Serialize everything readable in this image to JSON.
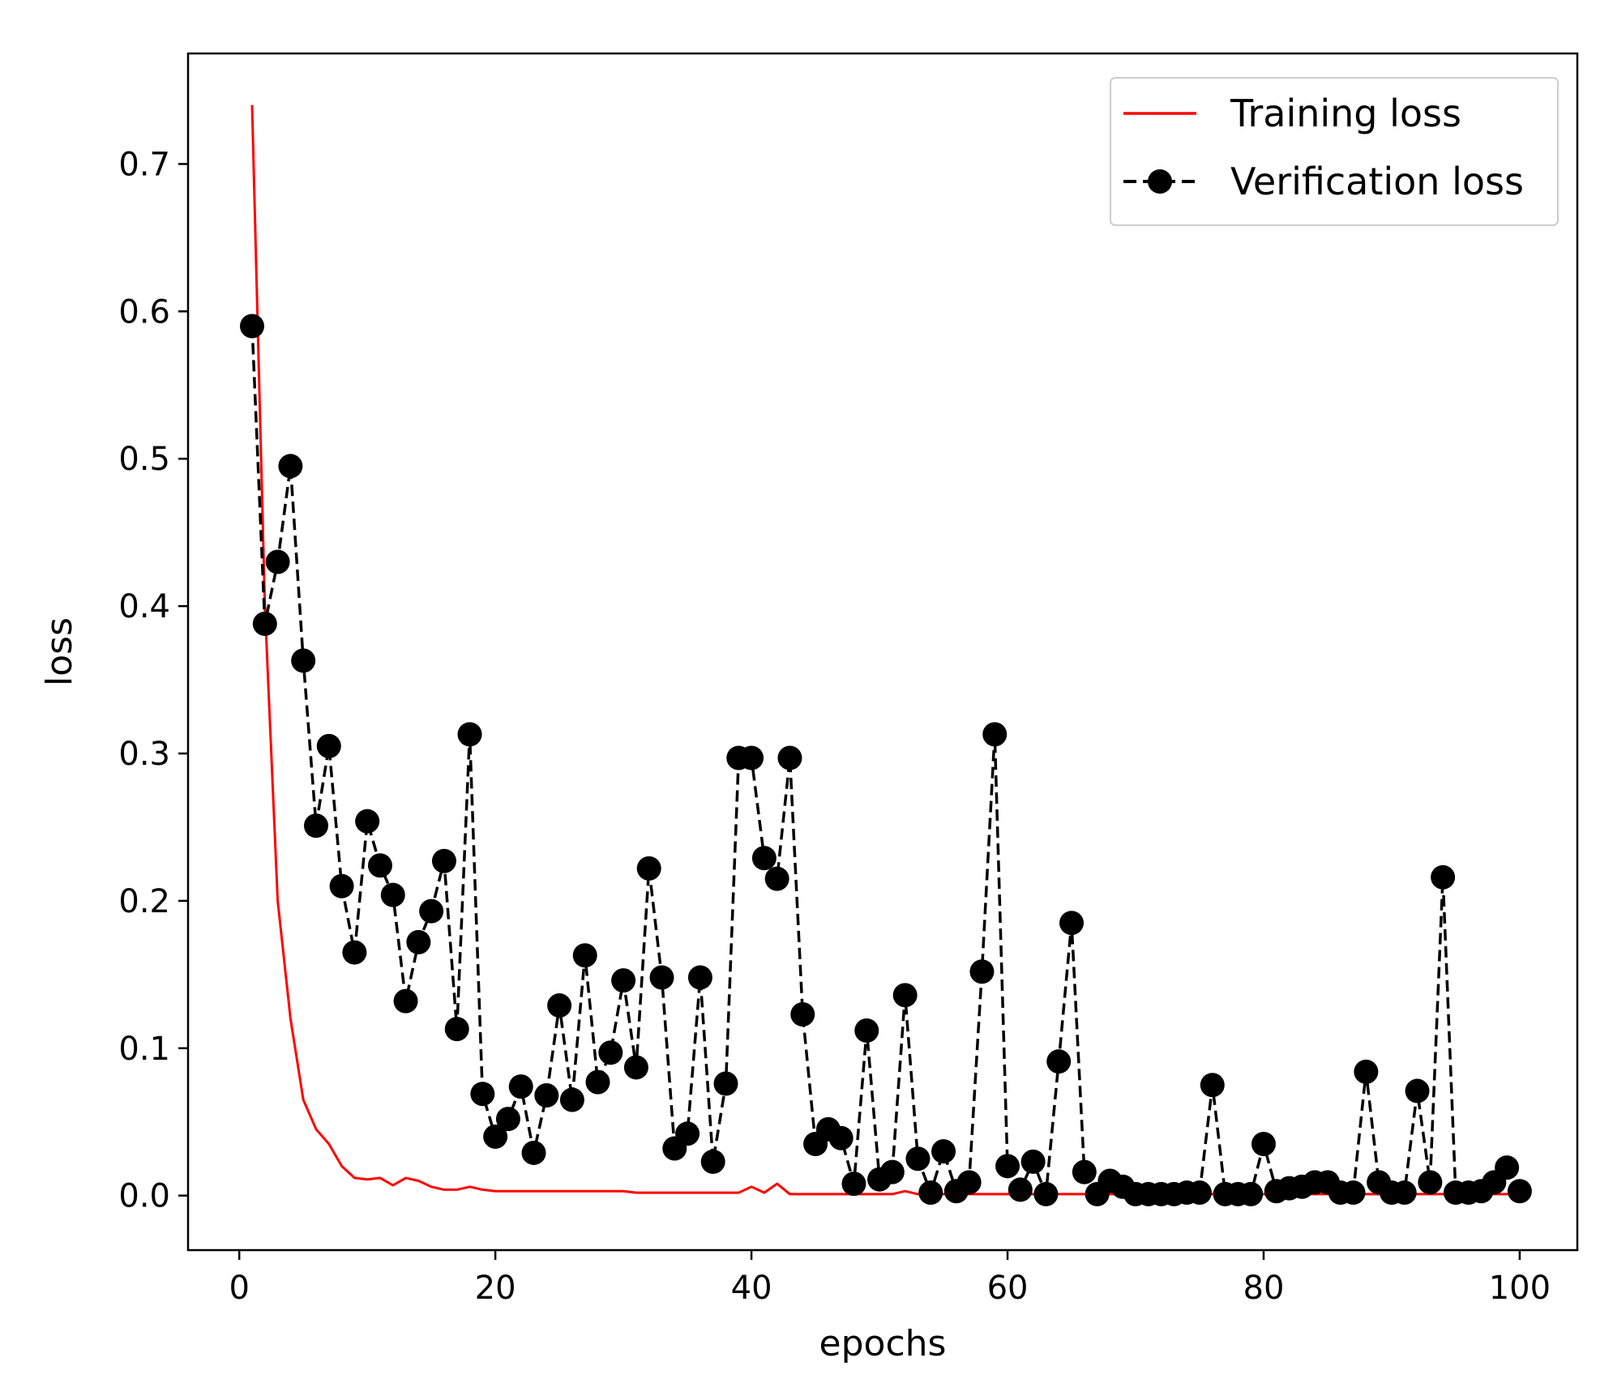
{
  "chart_data": {
    "type": "line",
    "xlabel": "epochs",
    "ylabel": "loss",
    "xlim": [
      -4,
      104.5
    ],
    "ylim": [
      -0.037,
      0.775
    ],
    "xticks": [
      0,
      20,
      40,
      60,
      80,
      100
    ],
    "yticks": [
      0.0,
      0.1,
      0.2,
      0.3,
      0.4,
      0.5,
      0.6,
      0.7
    ],
    "xtick_labels": [
      "0",
      "20",
      "40",
      "60",
      "80",
      "100"
    ],
    "ytick_labels": [
      "0.0",
      "0.1",
      "0.2",
      "0.3",
      "0.4",
      "0.5",
      "0.6",
      "0.7"
    ],
    "grid": false,
    "legend_position": "top-right",
    "series": [
      {
        "name": "Training loss",
        "color": "#ff0000",
        "style": "solid",
        "marker": "none",
        "x": [
          1,
          2,
          3,
          4,
          5,
          6,
          7,
          8,
          9,
          10,
          11,
          12,
          13,
          14,
          15,
          16,
          17,
          18,
          19,
          20,
          21,
          22,
          23,
          24,
          25,
          26,
          27,
          28,
          29,
          30,
          31,
          32,
          33,
          34,
          35,
          36,
          37,
          38,
          39,
          40,
          41,
          42,
          43,
          44,
          45,
          46,
          47,
          48,
          49,
          50,
          51,
          52,
          53,
          54,
          55,
          56,
          57,
          58,
          59,
          60,
          61,
          62,
          63,
          64,
          65,
          66,
          67,
          68,
          69,
          70,
          71,
          72,
          73,
          74,
          75,
          76,
          77,
          78,
          79,
          80,
          81,
          82,
          83,
          84,
          85,
          86,
          87,
          88,
          89,
          90,
          91,
          92,
          93,
          94,
          95,
          96,
          97,
          98,
          99,
          100
        ],
        "y": [
          0.74,
          0.4,
          0.2,
          0.12,
          0.065,
          0.045,
          0.035,
          0.02,
          0.012,
          0.011,
          0.012,
          0.007,
          0.012,
          0.01,
          0.006,
          0.004,
          0.004,
          0.006,
          0.004,
          0.003,
          0.003,
          0.003,
          0.003,
          0.003,
          0.003,
          0.003,
          0.003,
          0.003,
          0.003,
          0.003,
          0.002,
          0.002,
          0.002,
          0.002,
          0.002,
          0.002,
          0.002,
          0.002,
          0.002,
          0.006,
          0.002,
          0.008,
          0.001,
          0.001,
          0.001,
          0.001,
          0.001,
          0.001,
          0.001,
          0.001,
          0.001,
          0.003,
          0.001,
          0.001,
          0.001,
          0.001,
          0.001,
          0.001,
          0.001,
          0.001,
          0.001,
          0.001,
          0.001,
          0.001,
          0.001,
          0.001,
          0.001,
          0.001,
          0.001,
          0.001,
          0.001,
          0.001,
          0.001,
          0.001,
          0.001,
          0.001,
          0.001,
          0.001,
          0.001,
          0.001,
          0.001,
          0.001,
          0.001,
          0.001,
          0.001,
          0.001,
          0.001,
          0.001,
          0.001,
          0.001,
          0.001,
          0.001,
          0.001,
          0.001,
          0.001,
          0.001,
          0.001,
          0.001,
          0.001,
          0.001
        ]
      },
      {
        "name": "Verification loss",
        "color": "#000000",
        "style": "dashed",
        "marker": "circle",
        "x": [
          1,
          2,
          3,
          4,
          5,
          6,
          7,
          8,
          9,
          10,
          11,
          12,
          13,
          14,
          15,
          16,
          17,
          18,
          19,
          20,
          21,
          22,
          23,
          24,
          25,
          26,
          27,
          28,
          29,
          30,
          31,
          32,
          33,
          34,
          35,
          36,
          37,
          38,
          39,
          40,
          41,
          42,
          43,
          44,
          45,
          46,
          47,
          48,
          49,
          50,
          51,
          52,
          53,
          54,
          55,
          56,
          57,
          58,
          59,
          60,
          61,
          62,
          63,
          64,
          65,
          66,
          67,
          68,
          69,
          70,
          71,
          72,
          73,
          74,
          75,
          76,
          77,
          78,
          79,
          80,
          81,
          82,
          83,
          84,
          85,
          86,
          87,
          88,
          89,
          90,
          91,
          92,
          93,
          94,
          95,
          96,
          97,
          98,
          99,
          100
        ],
        "y": [
          0.59,
          0.388,
          0.43,
          0.495,
          0.363,
          0.251,
          0.305,
          0.21,
          0.165,
          0.254,
          0.224,
          0.204,
          0.132,
          0.172,
          0.193,
          0.227,
          0.113,
          0.313,
          0.069,
          0.04,
          0.052,
          0.074,
          0.029,
          0.068,
          0.129,
          0.065,
          0.163,
          0.077,
          0.097,
          0.146,
          0.087,
          0.222,
          0.148,
          0.032,
          0.042,
          0.148,
          0.023,
          0.076,
          0.297,
          0.297,
          0.229,
          0.215,
          0.297,
          0.123,
          0.035,
          0.045,
          0.039,
          0.008,
          0.112,
          0.011,
          0.016,
          0.136,
          0.025,
          0.002,
          0.03,
          0.003,
          0.009,
          0.152,
          0.313,
          0.02,
          0.004,
          0.023,
          0.001,
          0.091,
          0.185,
          0.016,
          0.001,
          0.01,
          0.006,
          0.001,
          0.001,
          0.001,
          0.001,
          0.002,
          0.002,
          0.075,
          0.001,
          0.001,
          0.001,
          0.035,
          0.003,
          0.005,
          0.006,
          0.009,
          0.009,
          0.002,
          0.002,
          0.084,
          0.009,
          0.002,
          0.002,
          0.071,
          0.009,
          0.216,
          0.002,
          0.002,
          0.003,
          0.009,
          0.019,
          0.003
        ]
      }
    ]
  }
}
